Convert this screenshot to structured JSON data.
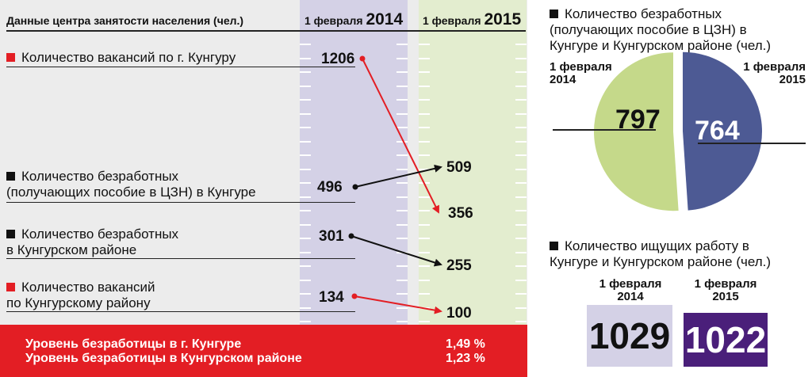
{
  "colors": {
    "red": "#e31e24",
    "dark": "#111111",
    "purple": "#4a1f7a",
    "lavender": "#d4d1e6",
    "pie_green": "#c5d98a",
    "pie_blue": "#4d5a94",
    "col_green": "#e3edcf"
  },
  "header": {
    "title": "Данные центра занятости населения (чел.)",
    "col1_prefix": "1 февраля",
    "col1_year": "2014",
    "col2_prefix": "1 февраля",
    "col2_year": "2015"
  },
  "chart_data": [
    {
      "type": "slope",
      "categories": [
        "1 февраля 2014",
        "1 февраля 2015"
      ],
      "series": [
        {
          "name": "Количество вакансий по г. Кунгуру",
          "values": [
            1206,
            356
          ],
          "color": "#e31e24"
        },
        {
          "name": "Количество безработных (получающих пособие в ЦЗН) в Кунгуре",
          "values": [
            496,
            509
          ],
          "color": "#111111"
        },
        {
          "name": "Количество безработных в Кунгурском районе",
          "values": [
            301,
            255
          ],
          "color": "#111111"
        },
        {
          "name": "Количество вакансий по Кунгурскому району",
          "values": [
            134,
            100
          ],
          "color": "#e31e24"
        }
      ]
    },
    {
      "type": "pie",
      "title": "Количество безработных (получающих пособие в ЦЗН) в Кунгуре и Кунгурском районе (чел.)",
      "labels": [
        "1 февраля 2014",
        "1 февраля 2015"
      ],
      "values": [
        797,
        764
      ]
    },
    {
      "type": "table",
      "title": "Количество ищущих работу в Кунгуре и Кунгурском районе (чел.)",
      "labels": [
        "1 февраля 2014",
        "1 февраля 2015"
      ],
      "values": [
        1029,
        1022
      ]
    }
  ],
  "rows": [
    {
      "line1": "Количество вакансий по г. Кунгуру",
      "line2": "",
      "v2014": "1206",
      "v2015": "356"
    },
    {
      "line1": "Количество безработных",
      "line2": "(получающих пособие в ЦЗН) в Кунгуре",
      "v2014": "496",
      "v2015": "509"
    },
    {
      "line1": "Количество безработных",
      "line2": "в Кунгурском районе",
      "v2014": "301",
      "v2015": "255"
    },
    {
      "line1": "Количество вакансий",
      "line2": "по Кунгурскому району",
      "v2014": "134",
      "v2015": "100"
    }
  ],
  "bottom": {
    "city_label": "Уровень безработицы  в г. Кунгуре",
    "city_value": "1,49 %",
    "district_label": "Уровень безработицы в Кунгурском районе",
    "district_value": "1,23 %"
  },
  "pie": {
    "title_line1": "Количество безработных",
    "title_line2": "(получающих пособие в ЦЗН) в",
    "title_line3": "Кунгуре и Кунгурском районе (чел.)",
    "left_line1": "1 февраля",
    "left_line2": "2014",
    "right_line1": "1 февраля",
    "right_line2": "2015",
    "value_2014": "797",
    "value_2015": "764"
  },
  "seekers": {
    "title_line1": "Количество ищущих работу в",
    "title_line2": "Кунгуре и Кунгурском районе (чел.)",
    "left_line1": "1 февраля",
    "left_line2": "2014",
    "right_line1": "1 февраля",
    "right_line2": "2015",
    "value_2014": "1029",
    "value_2015": "1022"
  }
}
